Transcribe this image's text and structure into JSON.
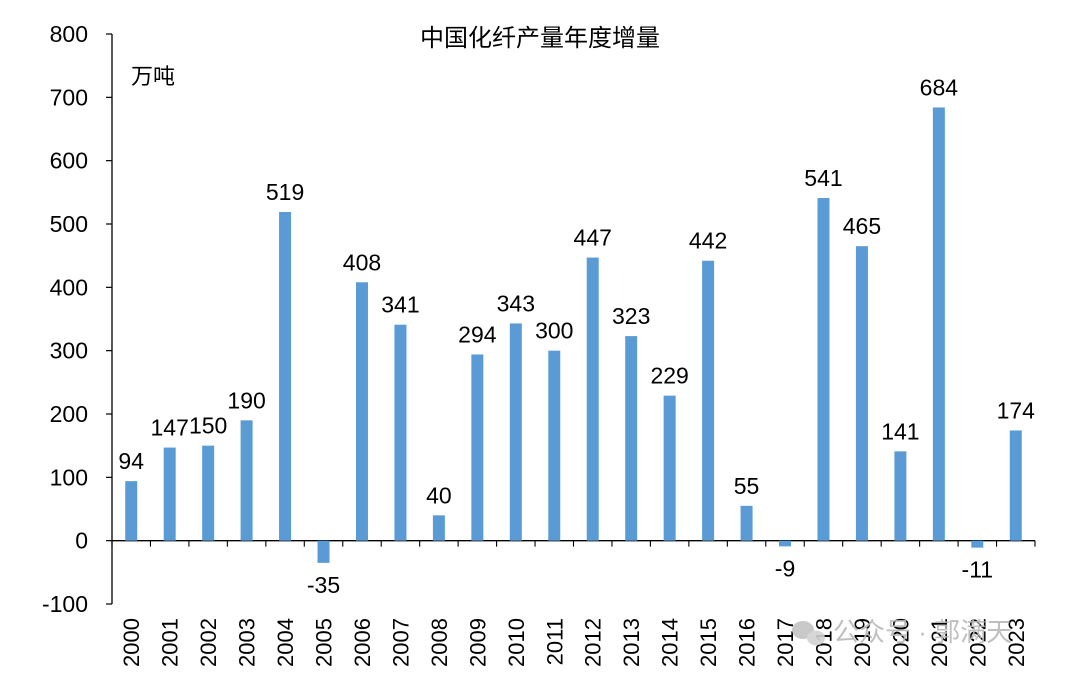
{
  "chart_data": {
    "type": "bar",
    "title": "中国化纤产量年度增量",
    "unit_label": "万吨",
    "categories": [
      "2000",
      "2001",
      "2002",
      "2003",
      "2004",
      "2005",
      "2006",
      "2007",
      "2008",
      "2009",
      "2010",
      "2011",
      "2012",
      "2013",
      "2014",
      "2015",
      "2016",
      "2017",
      "2018",
      "2019",
      "2020",
      "2021",
      "2022",
      "2023"
    ],
    "values": [
      94,
      147,
      150,
      190,
      519,
      -35,
      408,
      341,
      40,
      294,
      343,
      300,
      447,
      323,
      229,
      442,
      55,
      -9,
      541,
      465,
      141,
      684,
      -11,
      174
    ],
    "ylim": [
      -100,
      800
    ],
    "yticks": [
      -100,
      0,
      100,
      200,
      300,
      400,
      500,
      600,
      700,
      800
    ],
    "bar_color": "#5B9BD5",
    "legend": "none",
    "grid": false
  },
  "watermark": {
    "source_text": "公众号 · 郭满天",
    "icon": "wechat-icon"
  }
}
